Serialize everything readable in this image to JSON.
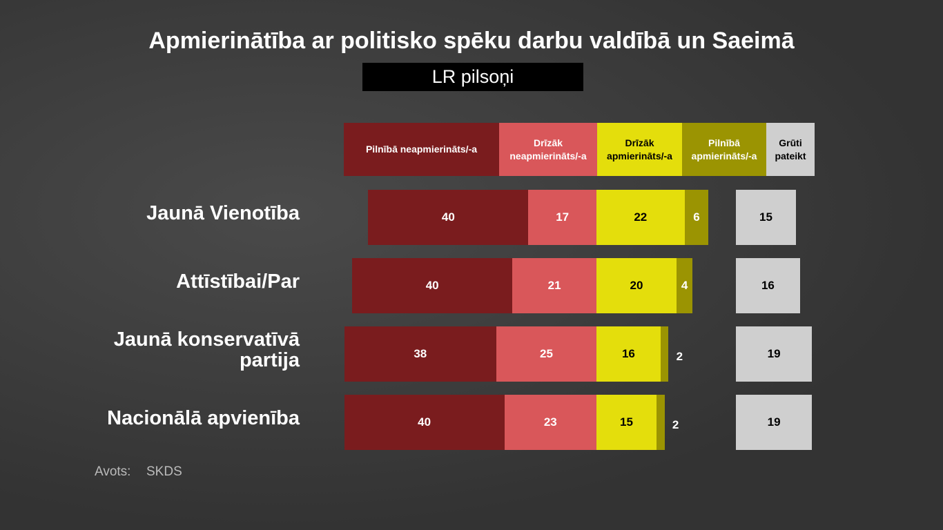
{
  "chart_data": {
    "type": "diverging-bar",
    "title": "Apmierinātība ar politisko spēku darbu valdībā un Saeimā",
    "subtitle": "LR pilsoņi",
    "categories": [
      "Jaunā Vienotība",
      "Attīstībai/Par",
      "Jaunā konservatīvā partija",
      "Nacionālā apvienība"
    ],
    "series": [
      {
        "name": "Pilnībā neapmierināts/-a",
        "color": "#7a1c1e",
        "values": [
          40,
          40,
          38,
          40
        ]
      },
      {
        "name": "Drīzāk neapmierināts/-a",
        "color": "#d9575a",
        "values": [
          17,
          21,
          25,
          23
        ]
      },
      {
        "name": "Drīzāk apmierināts/-a",
        "color": "#e4de0c",
        "values": [
          22,
          20,
          16,
          15
        ]
      },
      {
        "name": "Pilnībā apmierināts/-a",
        "color": "#9b9402",
        "values": [
          6,
          4,
          2,
          2
        ]
      },
      {
        "name": "Grūti pateikt",
        "color": "#cfcfcf",
        "values": [
          15,
          16,
          19,
          19
        ]
      }
    ],
    "source_label": "Avots:",
    "source": "SKDS"
  }
}
